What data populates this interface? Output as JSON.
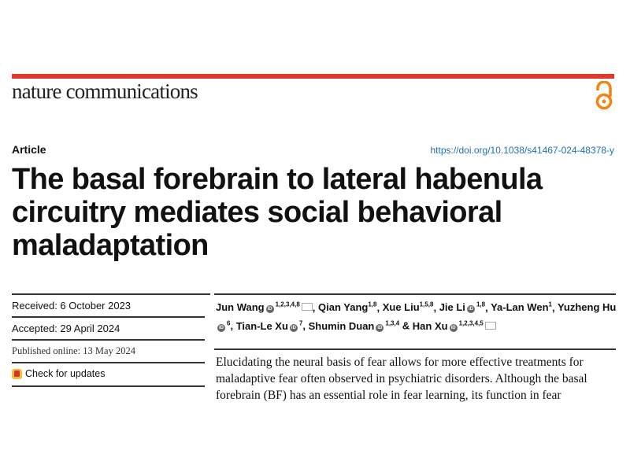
{
  "journal": {
    "name": "nature communications",
    "open_access_icon": "open-access-icon",
    "accent_color": "#e2392e",
    "oa_color": "#f68212"
  },
  "article": {
    "type": "Article",
    "doi": "https://doi.org/10.1038/s41467-024-48378-y",
    "title": "The basal forebrain to lateral habenula circuitry mediates social behavioral maladaptation"
  },
  "dates": {
    "received": "Received: 6 October 2023",
    "accepted": "Accepted: 29 April 2024",
    "published": "Published online: 13 May 2024",
    "check_updates": "Check for updates"
  },
  "authors": [
    {
      "name": "Jun Wang",
      "aff": "1,2,3,4,8",
      "orcid": true,
      "mail": true,
      "sep": ", "
    },
    {
      "name": "Qian Yang",
      "aff": "1,8",
      "orcid": false,
      "mail": false,
      "sep": ", "
    },
    {
      "name": "Xue Liu",
      "aff": "1,5,8",
      "orcid": false,
      "mail": false,
      "sep": ", "
    },
    {
      "name": "Jie Li",
      "aff": "1,8",
      "orcid": true,
      "mail": false,
      "sep": ", "
    },
    {
      "name": "Ya-Lan Wen",
      "aff": "1",
      "orcid": false,
      "mail": false,
      "sep": ", "
    },
    {
      "name": "Yuzheng Hu",
      "aff": "6",
      "orcid": true,
      "mail": false,
      "sep": ", "
    },
    {
      "name": "Tian-Le Xu",
      "aff": "7",
      "orcid": true,
      "mail": false,
      "sep": ", "
    },
    {
      "name": "Shumin Duan",
      "aff": "1,3,4",
      "orcid": true,
      "mail": false,
      "sep": " & "
    },
    {
      "name": "Han Xu",
      "aff": "1,2,3,4,5",
      "orcid": true,
      "mail": true,
      "sep": ""
    }
  ],
  "abstract": "Elucidating the neural basis of fear allows for more effective treatments for maladaptive fear often observed in psychiatric disorders. Although the basal forebrain (BF) has an essential role in fear learning, its function in fear"
}
